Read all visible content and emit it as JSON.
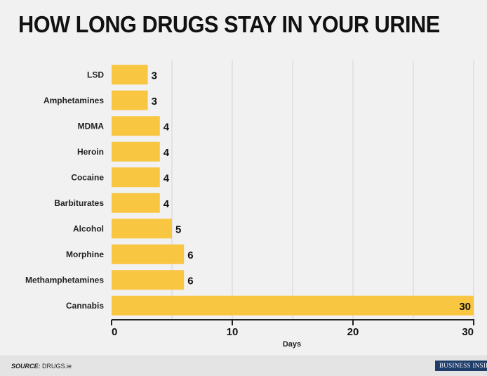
{
  "title": "HOW LONG DRUGS STAY IN YOUR URINE",
  "source_label": "SOURCE:",
  "source_text": "DRUGS.ie",
  "brand": "BUSINESS INSIDER",
  "colors": {
    "bar": "#f9c642",
    "grid": "#d4d4d4",
    "axis": "#222222"
  },
  "chart_data": {
    "type": "bar",
    "orientation": "horizontal",
    "categories": [
      "LSD",
      "Amphetamines",
      "MDMA",
      "Heroin",
      "Cocaine",
      "Barbiturates",
      "Alcohol",
      "Morphine",
      "Methamphetamines",
      "Cannabis"
    ],
    "values": [
      3,
      3,
      4,
      4,
      4,
      4,
      5,
      6,
      6,
      30
    ],
    "data_labels": [
      "3",
      "3",
      "4",
      "4",
      "4",
      "4",
      "5",
      "6",
      "6",
      "30"
    ],
    "xlabel": "Days",
    "ylabel": "",
    "xlim": [
      0,
      30
    ],
    "xticks": [
      0,
      10,
      20,
      30
    ],
    "xtick_labels": [
      "0",
      "10",
      "20",
      "30"
    ],
    "grid": true
  }
}
